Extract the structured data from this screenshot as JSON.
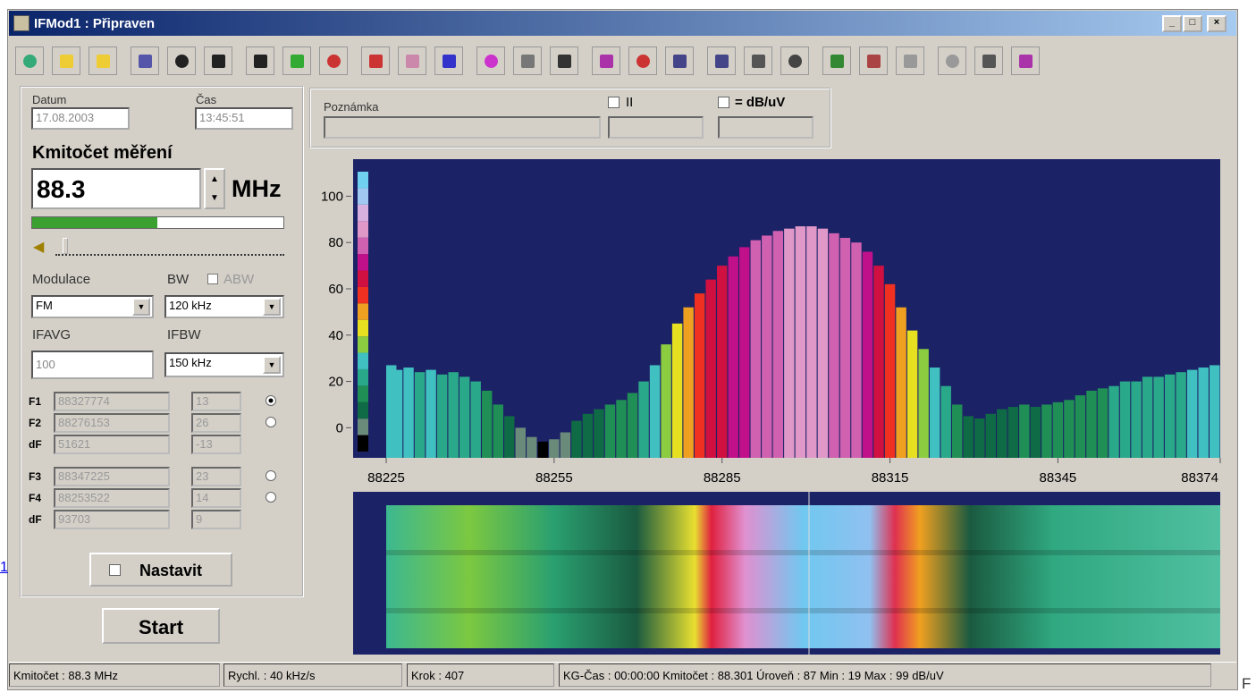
{
  "window": {
    "title": "IFMod1 : Připraven"
  },
  "left": {
    "date_label": "Datum",
    "date": "17.08.2003",
    "time_label": "Čas",
    "time": "13:45:51",
    "freq_label": "Kmitočet měření",
    "freq": "88.3",
    "unit": "MHz",
    "mod_label": "Modulace",
    "mod": "FM",
    "bw_label": "BW",
    "abw": "ABW",
    "bw": "120 kHz",
    "ifavg_label": "IFAVG",
    "ifavg": "100",
    "ifbw_label": "IFBW",
    "ifbw": "150 kHz",
    "markers": [
      {
        "label": "F1",
        "freq": "88327774",
        "level": "13",
        "radio": true
      },
      {
        "label": "F2",
        "freq": "88276153",
        "level": "26",
        "radio": true
      },
      {
        "label": "dF",
        "freq": "51621",
        "level": "-13",
        "radio": false
      },
      {
        "label": "F3",
        "freq": "88347225",
        "level": "23",
        "radio": true
      },
      {
        "label": "F4",
        "freq": "88253522",
        "level": "14",
        "radio": true
      },
      {
        "label": "dF",
        "freq": "93703",
        "level": "9",
        "radio": false
      }
    ],
    "nastavit": "Nastavit",
    "start": "Start"
  },
  "note": {
    "label": "Poznámka",
    "ii": "II",
    "db": "= dB/uV"
  },
  "chart_data": {
    "type": "bar",
    "x": [
      88225,
      88227,
      88229,
      88231,
      88233,
      88235,
      88237,
      88239,
      88241,
      88243,
      88245,
      88247,
      88249,
      88251,
      88253,
      88255,
      88257,
      88259,
      88261,
      88263,
      88265,
      88267,
      88269,
      88271,
      88273,
      88275,
      88277,
      88279,
      88281,
      88283,
      88285,
      88287,
      88289,
      88291,
      88293,
      88295,
      88297,
      88299,
      88301,
      88303,
      88305,
      88307,
      88309,
      88311,
      88313,
      88315,
      88317,
      88319,
      88321,
      88323,
      88325,
      88327,
      88329,
      88331,
      88333,
      88335,
      88337,
      88339,
      88341,
      88343,
      88345,
      88347,
      88349,
      88351,
      88353,
      88355,
      88357,
      88359,
      88361,
      88363,
      88365,
      88367,
      88369,
      88371,
      88373
    ],
    "values": [
      27,
      25,
      26,
      24,
      25,
      23,
      24,
      22,
      20,
      16,
      10,
      5,
      0,
      -4,
      -6,
      -5,
      -2,
      3,
      6,
      8,
      10,
      12,
      15,
      20,
      27,
      36,
      45,
      52,
      58,
      64,
      70,
      74,
      78,
      81,
      83,
      85,
      86,
      87,
      87,
      86,
      84,
      82,
      80,
      76,
      70,
      62,
      52,
      42,
      34,
      26,
      18,
      10,
      5,
      4,
      6,
      8,
      9,
      10,
      9,
      10,
      11,
      12,
      14,
      16,
      17,
      18,
      20,
      20,
      22,
      22,
      23,
      24,
      25,
      26,
      27
    ],
    "xlim": [
      88225,
      88374
    ],
    "xticks": [
      88225,
      88255,
      88285,
      88315,
      88345,
      88374
    ],
    "ylim": [
      -13,
      116
    ],
    "yticks": [
      0,
      20,
      40,
      60,
      80,
      100
    ],
    "palette": [
      "#000000",
      "#6a8a7a",
      "#0f6b45",
      "#1f8f55",
      "#2aa88a",
      "#40c0c0",
      "#8ccc40",
      "#e6e020",
      "#f0a020",
      "#f03020",
      "#d01040",
      "#c0108a",
      "#d060b0",
      "#e098c8",
      "#d8b0e0",
      "#a0c8f0",
      "#70d0f0"
    ]
  },
  "status": [
    "Kmitočet :  88.3 MHz",
    "Rychl. : 40 kHz/s",
    "Krok   :  407",
    "KG-Čas : 00:00:00   Kmitočet : 88.301   Úroveň :  87   Min :  19   Max :  99 dB/uV"
  ],
  "stray": {
    "left": "1",
    "right": "F"
  }
}
